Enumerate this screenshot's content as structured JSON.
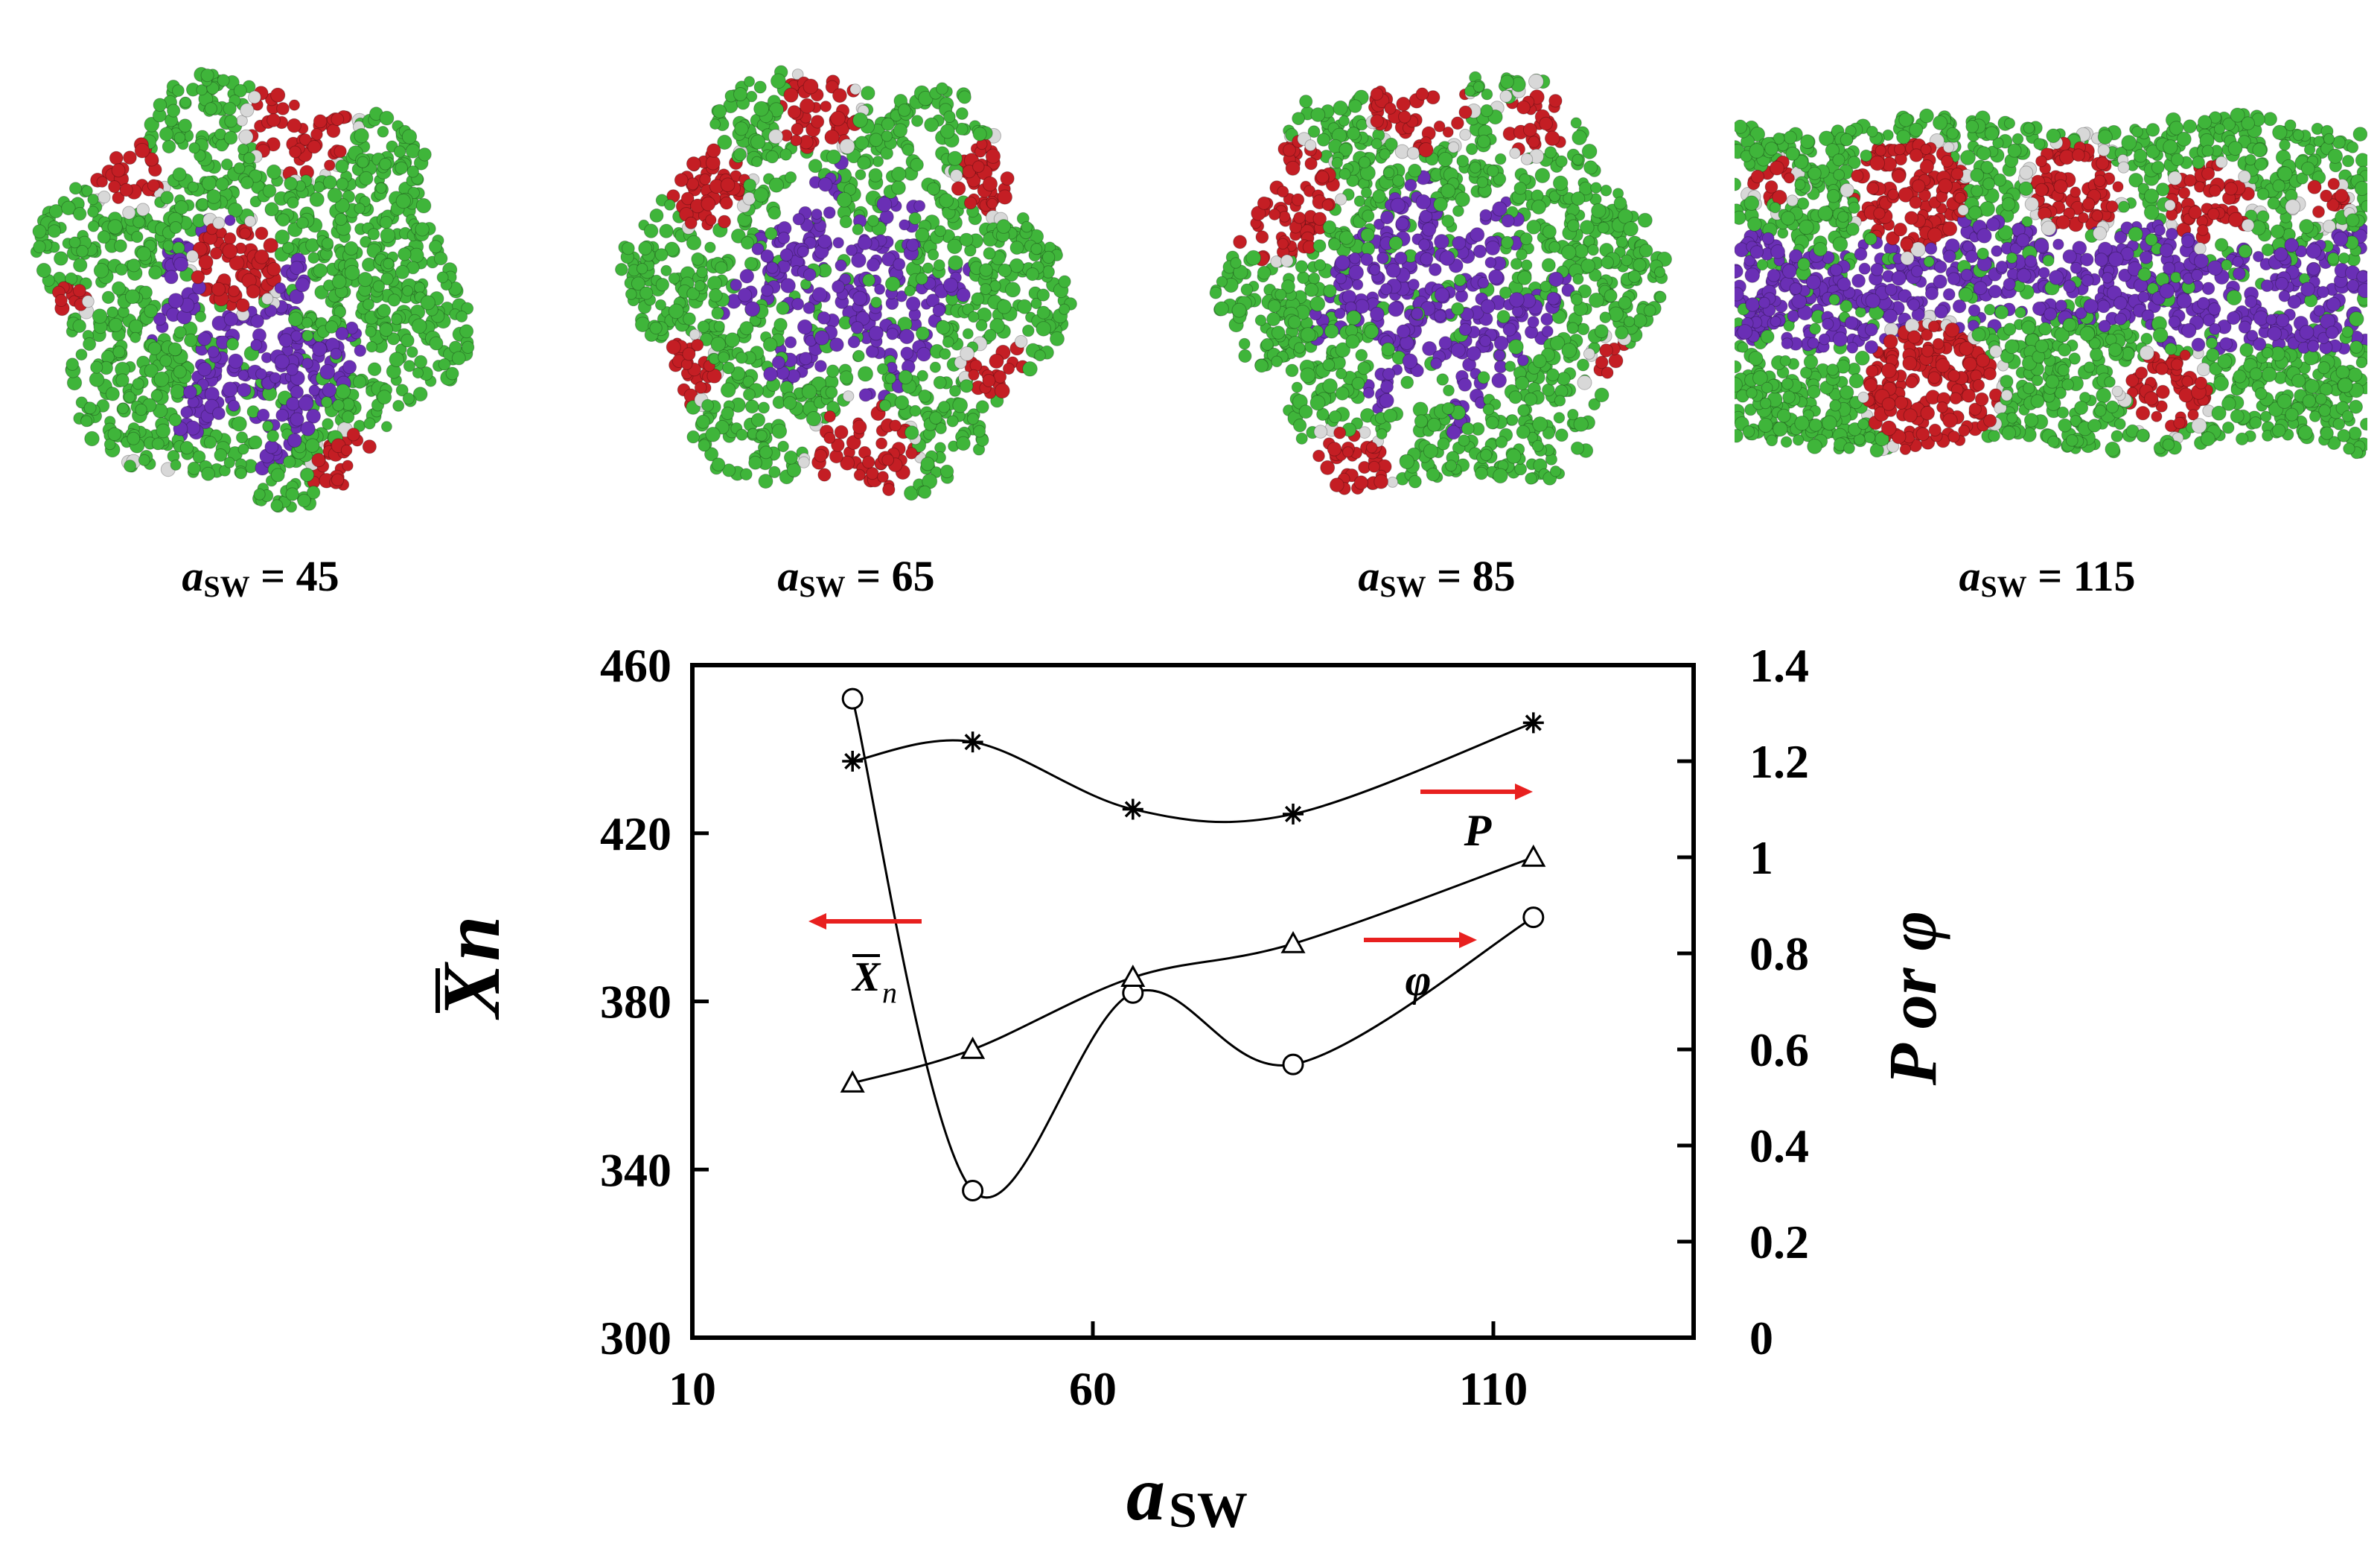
{
  "snapshots": [
    {
      "label_var": "a",
      "label_sub": "SW",
      "label_value": "= 45",
      "shape": "blob"
    },
    {
      "label_var": "a",
      "label_sub": "SW",
      "label_value": "= 65",
      "shape": "blob"
    },
    {
      "label_var": "a",
      "label_sub": "SW",
      "label_value": "= 85",
      "shape": "blob"
    },
    {
      "label_var": "a",
      "label_sub": "SW",
      "label_value": "= 115",
      "shape": "slab"
    }
  ],
  "colors": {
    "shell": "#3fb53a",
    "core": "#6a2fb5",
    "domain": "#c41e24",
    "bead": "#d8d8d8",
    "arrow": "#e8201f",
    "line": "#000000"
  },
  "chart_data": {
    "type": "line",
    "xlabel_var": "a",
    "xlabel_sub": "SW",
    "ylabel_left_var": "X",
    "ylabel_left_sub": "n",
    "ylabel_right": "P or φ",
    "xlim": [
      10,
      135
    ],
    "xticks": [
      10,
      60,
      110
    ],
    "ylim_left": [
      300,
      460
    ],
    "yticks_left": [
      300,
      340,
      380,
      420,
      460
    ],
    "ylim_right": [
      0,
      1.4
    ],
    "yticks_right": [
      "0",
      "0.2",
      "0.4",
      "0.6",
      "0.8",
      "1",
      "1.2",
      "1.4"
    ],
    "series": [
      {
        "name": "X_n",
        "axis": "left",
        "marker": "circle",
        "x": [
          30,
          45,
          65,
          85,
          115
        ],
        "y": [
          452,
          335,
          382,
          365,
          400
        ]
      },
      {
        "name": "P",
        "axis": "right",
        "marker": "asterisk",
        "x": [
          30,
          45,
          65,
          85,
          115
        ],
        "y": [
          1.2,
          1.24,
          1.1,
          1.09,
          1.28
        ]
      },
      {
        "name": "φ",
        "axis": "right",
        "marker": "triangle",
        "x": [
          30,
          45,
          65,
          85,
          115
        ],
        "y": [
          0.53,
          0.6,
          0.75,
          0.82,
          1.0
        ]
      }
    ],
    "annotations": [
      {
        "text_var": "X",
        "text_sub": "n",
        "arrow": "left"
      },
      {
        "text": "P",
        "arrow": "right"
      },
      {
        "text": "φ",
        "arrow": "right"
      }
    ]
  }
}
